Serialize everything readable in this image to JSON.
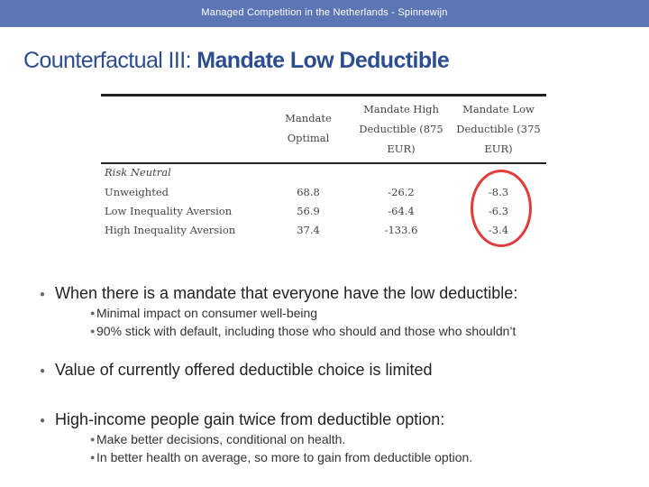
{
  "header": {
    "text": "Managed Competition in the Netherlands - Spinnewijn"
  },
  "title": {
    "main": "Counterfactual III: ",
    "accent": "Mandate Low Deductible"
  },
  "table": {
    "columns": [
      [
        "Mandate",
        "Optimal"
      ],
      [
        "Mandate High",
        "Deductible (875",
        "EUR)"
      ],
      [
        "Mandate Low",
        "Deductible (375",
        "EUR)"
      ]
    ],
    "section_label": "Risk Neutral",
    "rows": [
      {
        "label": "Unweighted",
        "values": [
          "68.8",
          "-26.2",
          "-8.3"
        ]
      },
      {
        "label": "Low Inequality Aversion",
        "values": [
          "56.9",
          "-64.4",
          "-6.3"
        ]
      },
      {
        "label": "High Inequality Aversion",
        "values": [
          "37.4",
          "-133.6",
          "-3.4"
        ]
      }
    ],
    "highlight_color": "#e23b3b"
  },
  "bullets": [
    {
      "text": "When there is a mandate that everyone have the low deductible:",
      "sub": [
        "Minimal impact on consumer well-being",
        "90% stick with default, including those who should and those who shouldn’t"
      ]
    },
    {
      "text": "Value of currently offered deductible choice is limited",
      "sub": []
    },
    {
      "text": "High-income people gain twice from deductible option:",
      "sub": [
        "Make better decisions, conditional on health.",
        "In better health on average, so more to gain from deductible option."
      ]
    }
  ],
  "colors": {
    "header_band": "#5c76b5",
    "title": "#2c4d8f",
    "circle": "#e23b3b"
  }
}
